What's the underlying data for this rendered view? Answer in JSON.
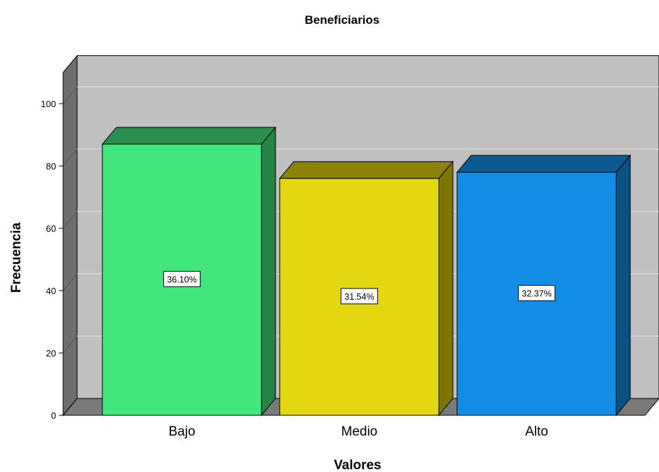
{
  "chart_data": {
    "type": "bar",
    "title": "Beneficiarios",
    "xlabel": "Valores",
    "ylabel": "Frecuencia",
    "categories": [
      "Bajo",
      "Medio",
      "Alto"
    ],
    "values": [
      87,
      76,
      78
    ],
    "data_labels": [
      "36.10%",
      "31.54%",
      "32.37%"
    ],
    "ylim": [
      0,
      100
    ],
    "yticks": [
      "0",
      "20",
      "40",
      "60",
      "80",
      "100"
    ],
    "grid": true,
    "style": "3d",
    "colors": {
      "bars_front": [
        "#41E67C",
        "#E2D710",
        "#128EE6"
      ],
      "bars_top": [
        "#2A9050",
        "#8C8205",
        "#0B5B92"
      ],
      "bars_side": [
        "#238445",
        "#7E7505",
        "#0A5282"
      ],
      "wall": "#C0C0C0",
      "floor": "#7A7A7A",
      "side_wall": "#6F6F6F",
      "gridline": "#D8D8D8"
    }
  }
}
